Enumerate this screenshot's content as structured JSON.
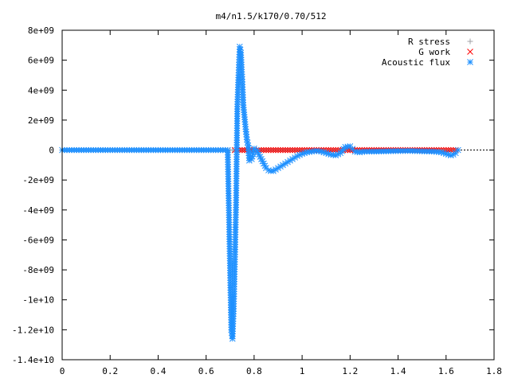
{
  "chart_data": {
    "type": "scatter",
    "title": "m4/n1.5/k170/0.70/512",
    "xlabel": "",
    "ylabel": "",
    "xlim": [
      0,
      1.8
    ],
    "ylim": [
      -14000000000,
      8000000000
    ],
    "x_ticks": [
      "0",
      "0.2",
      "0.4",
      "0.6",
      "0.8",
      "1",
      "1.2",
      "1.4",
      "1.6",
      "1.8"
    ],
    "y_ticks": [
      "8e+09",
      "6e+09",
      "4e+09",
      "2e+09",
      "0",
      "-2e+09",
      "-4e+09",
      "-6e+09",
      "-8e+09",
      "-1e+10",
      "-1.2e+10",
      "-1.4e+10"
    ],
    "legend_position": "top-right",
    "series": [
      {
        "name": "R stress",
        "marker": "plus",
        "color": "#a0a0a4",
        "x": [
          0.0,
          0.1,
          0.2,
          0.3,
          0.4,
          0.5,
          0.6,
          0.7,
          0.8,
          0.9,
          1.0,
          1.1,
          1.2,
          1.3,
          1.4,
          1.5,
          1.6,
          1.65
        ],
        "y": [
          0,
          0,
          0,
          0,
          0,
          0,
          0,
          0,
          0,
          0,
          0,
          0,
          0,
          0,
          0,
          0,
          0,
          0
        ]
      },
      {
        "name": "G work",
        "marker": "cross",
        "color": "#ff0000",
        "x": [
          0.72,
          0.74,
          0.76,
          0.78,
          0.8,
          0.82,
          0.84,
          0.86,
          0.88,
          0.9,
          0.92,
          0.94,
          0.96,
          0.98,
          1.0,
          1.02,
          1.04,
          1.06,
          1.08,
          1.1,
          1.12,
          1.14,
          1.16,
          1.18,
          1.2,
          1.22,
          1.24,
          1.26,
          1.28,
          1.3,
          1.32,
          1.34,
          1.36,
          1.38,
          1.4,
          1.42,
          1.44,
          1.46,
          1.48,
          1.5,
          1.52,
          1.54,
          1.56,
          1.58,
          1.6,
          1.62,
          1.64
        ],
        "y": [
          0,
          0,
          0,
          0,
          0,
          0,
          0,
          0,
          0,
          0,
          0,
          0,
          0,
          0,
          0,
          0,
          0,
          0,
          0,
          0,
          0,
          0,
          0,
          0,
          0,
          0,
          0,
          0,
          0,
          0,
          0,
          0,
          0,
          0,
          0,
          0,
          0,
          0,
          0,
          0,
          0,
          0,
          0,
          0,
          0,
          0,
          0
        ]
      },
      {
        "name": "Acoustic flux",
        "marker": "star",
        "color": "#1e90ff",
        "x": [
          0.0,
          0.05,
          0.1,
          0.15,
          0.2,
          0.25,
          0.3,
          0.35,
          0.4,
          0.45,
          0.5,
          0.55,
          0.6,
          0.65,
          0.69,
          0.7,
          0.705,
          0.71,
          0.715,
          0.72,
          0.725,
          0.73,
          0.735,
          0.74,
          0.745,
          0.75,
          0.755,
          0.76,
          0.765,
          0.77,
          0.775,
          0.78,
          0.79,
          0.8,
          0.81,
          0.82,
          0.83,
          0.84,
          0.85,
          0.86,
          0.87,
          0.88,
          0.89,
          0.9,
          0.92,
          0.94,
          0.96,
          0.98,
          1.0,
          1.02,
          1.04,
          1.06,
          1.08,
          1.1,
          1.12,
          1.14,
          1.16,
          1.18,
          1.2,
          1.22,
          1.24,
          1.26,
          1.3,
          1.35,
          1.4,
          1.45,
          1.5,
          1.55,
          1.58,
          1.6,
          1.62,
          1.63,
          1.64,
          1.65
        ],
        "y": [
          0,
          0,
          0,
          0,
          0,
          0,
          0,
          0,
          0,
          0,
          0,
          0,
          0,
          0,
          0,
          -8200000000,
          -12000000000,
          -12600000000,
          -10600000000,
          -7300000000,
          -3500000000,
          2900000000,
          5000000000,
          6900000000,
          6500000000,
          4900000000,
          3000000000,
          2200000000,
          1400000000,
          700000000,
          300000000,
          -700000000,
          -600000000,
          100000000,
          0,
          -300000000,
          -600000000,
          -900000000,
          -1200000000,
          -1350000000,
          -1400000000,
          -1400000000,
          -1300000000,
          -1200000000,
          -1000000000,
          -800000000,
          -600000000,
          -400000000,
          -250000000,
          -150000000,
          -100000000,
          -50000000,
          -100000000,
          -200000000,
          -300000000,
          -350000000,
          -200000000,
          200000000,
          250000000,
          -100000000,
          -150000000,
          -100000000,
          -100000000,
          -80000000,
          -60000000,
          -50000000,
          -80000000,
          -100000000,
          -150000000,
          -250000000,
          -350000000,
          -300000000,
          -200000000,
          0
        ]
      }
    ]
  }
}
